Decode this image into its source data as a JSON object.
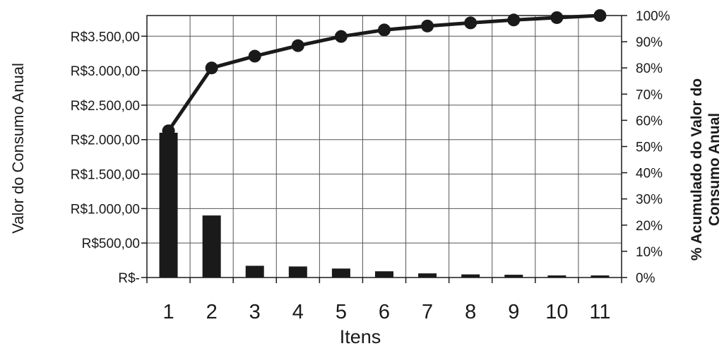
{
  "chart_data": {
    "type": "bar",
    "xlabel": "Itens",
    "ylabel": "Valor do Consumo Anual",
    "y2label_line1": "% Acumulado do Valor do",
    "y2label_line2": "Consumo Anual",
    "categories": [
      "1",
      "2",
      "3",
      "4",
      "5",
      "6",
      "7",
      "8",
      "9",
      "10",
      "11"
    ],
    "ylim": [
      0,
      3800
    ],
    "y2lim": [
      0,
      100
    ],
    "yticks": [
      0,
      500,
      1000,
      1500,
      2000,
      2500,
      3000,
      3500
    ],
    "ytick_labels": [
      "R$-",
      "R$500,00",
      "R$1.000,00",
      "R$1.500,00",
      "R$2.000,00",
      "R$2.500,00",
      "R$3.000,00",
      "R$3.500,00"
    ],
    "y2ticks": [
      0,
      10,
      20,
      30,
      40,
      50,
      60,
      70,
      80,
      90,
      100
    ],
    "y2tick_labels": [
      "0%",
      "10%",
      "20%",
      "30%",
      "40%",
      "50%",
      "60%",
      "70%",
      "80%",
      "90%",
      "100%"
    ],
    "grid": true,
    "series": [
      {
        "type": "bar",
        "axis": "left",
        "color": "#1a1a1a",
        "values": [
          2100,
          900,
          170,
          160,
          130,
          90,
          60,
          45,
          40,
          30,
          30
        ]
      },
      {
        "type": "line",
        "axis": "right",
        "color": "#1a1a1a",
        "marker": "circle",
        "values": [
          56,
          80,
          84.5,
          88.5,
          92,
          94.5,
          96,
          97.2,
          98.3,
          99.2,
          100
        ]
      }
    ]
  }
}
